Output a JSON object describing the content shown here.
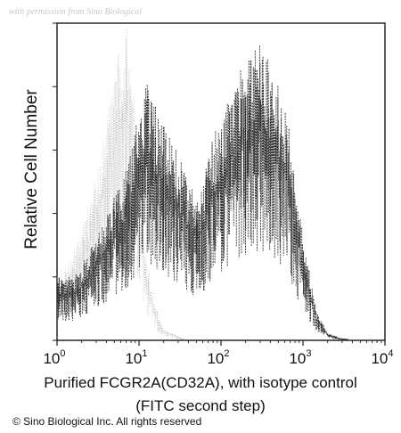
{
  "watermark": "with permission from Sino Biological",
  "copyright": "© Sino Biological Inc. All rights reserved",
  "chart_data": {
    "type": "area",
    "ylabel": "Relative Cell Number",
    "xlabel_line1": "Purified  FCGR2A(CD32A), with isotype control",
    "xlabel_line2": "(FITC second step)",
    "x_scale": "log",
    "xlim": [
      1,
      10000
    ],
    "ylim": [
      0,
      1
    ],
    "x_ticks": [
      {
        "value": 1,
        "base": "10",
        "exp": "0"
      },
      {
        "value": 10,
        "base": "10",
        "exp": "1"
      },
      {
        "value": 100,
        "base": "10",
        "exp": "2"
      },
      {
        "value": 1000,
        "base": "10",
        "exp": "3"
      },
      {
        "value": 10000,
        "base": "10",
        "exp": "4"
      }
    ],
    "grid": false,
    "series": [
      {
        "role": "isotype control",
        "style": "light-gray-dotted",
        "color": "#9a9a9a",
        "x": [
          1,
          1.5,
          2,
          3,
          4,
          5,
          6,
          7,
          8,
          9,
          10,
          12,
          15,
          18,
          20,
          25,
          30,
          40
        ],
        "y": [
          0.18,
          0.22,
          0.3,
          0.44,
          0.58,
          0.72,
          0.82,
          0.86,
          0.8,
          0.65,
          0.45,
          0.25,
          0.12,
          0.05,
          0.03,
          0.02,
          0.01,
          0.0
        ]
      },
      {
        "role": "FCGR2A(CD32A)",
        "style": "dark-noisy",
        "color": "#1a1a1a",
        "x": [
          1,
          1.5,
          2,
          3,
          4,
          6,
          8,
          10,
          12,
          15,
          20,
          30,
          40,
          50,
          60,
          80,
          100,
          150,
          200,
          250,
          300,
          400,
          500,
          700,
          800,
          1000,
          1200,
          1500,
          2000,
          3000,
          5000,
          10000
        ],
        "y": [
          0.17,
          0.17,
          0.2,
          0.28,
          0.34,
          0.42,
          0.5,
          0.62,
          0.7,
          0.64,
          0.58,
          0.5,
          0.42,
          0.4,
          0.42,
          0.55,
          0.6,
          0.7,
          0.76,
          0.78,
          0.8,
          0.76,
          0.7,
          0.56,
          0.42,
          0.28,
          0.18,
          0.07,
          0.02,
          0.005,
          0.002,
          0.0
        ]
      }
    ]
  }
}
